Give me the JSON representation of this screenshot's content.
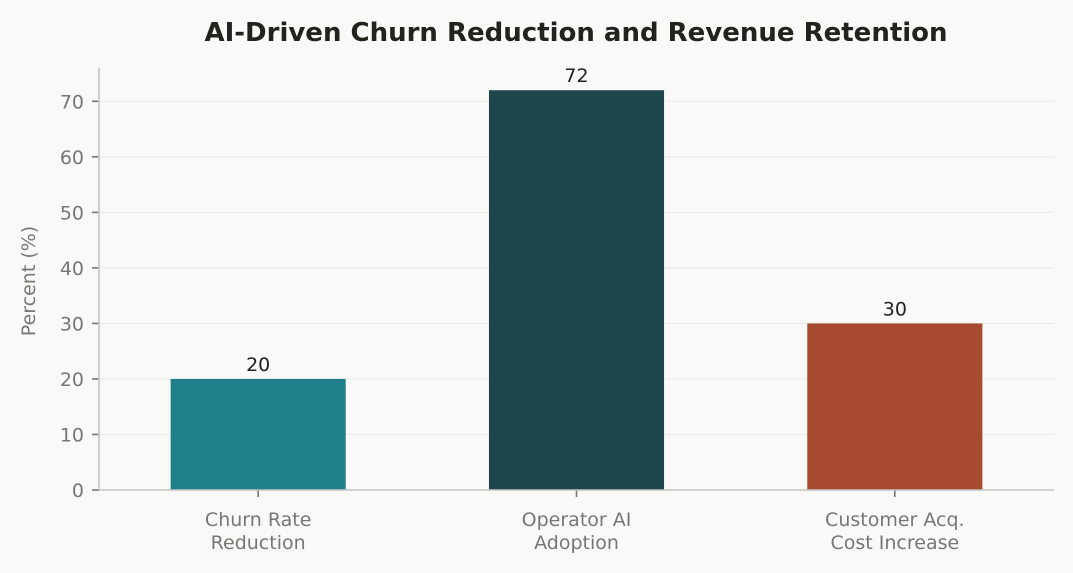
{
  "chart_data": {
    "type": "bar",
    "title": "AI-Driven Churn Reduction and Revenue Retention",
    "xlabel": "",
    "ylabel": "Percent (%)",
    "categories": [
      [
        "Churn Rate",
        "Reduction"
      ],
      [
        "Operator AI",
        "Adoption"
      ],
      [
        "Customer Acq.",
        "Cost Increase"
      ]
    ],
    "values": [
      20,
      72,
      30
    ],
    "data_labels": [
      "20",
      "72",
      "30"
    ],
    "colors": [
      "#1f7f8b",
      "#1d474c",
      "#a84a2f"
    ],
    "ylim": [
      0,
      76
    ],
    "yticks": [
      0,
      10,
      20,
      30,
      40,
      50,
      60,
      70
    ],
    "grid": true,
    "legend": "none"
  }
}
